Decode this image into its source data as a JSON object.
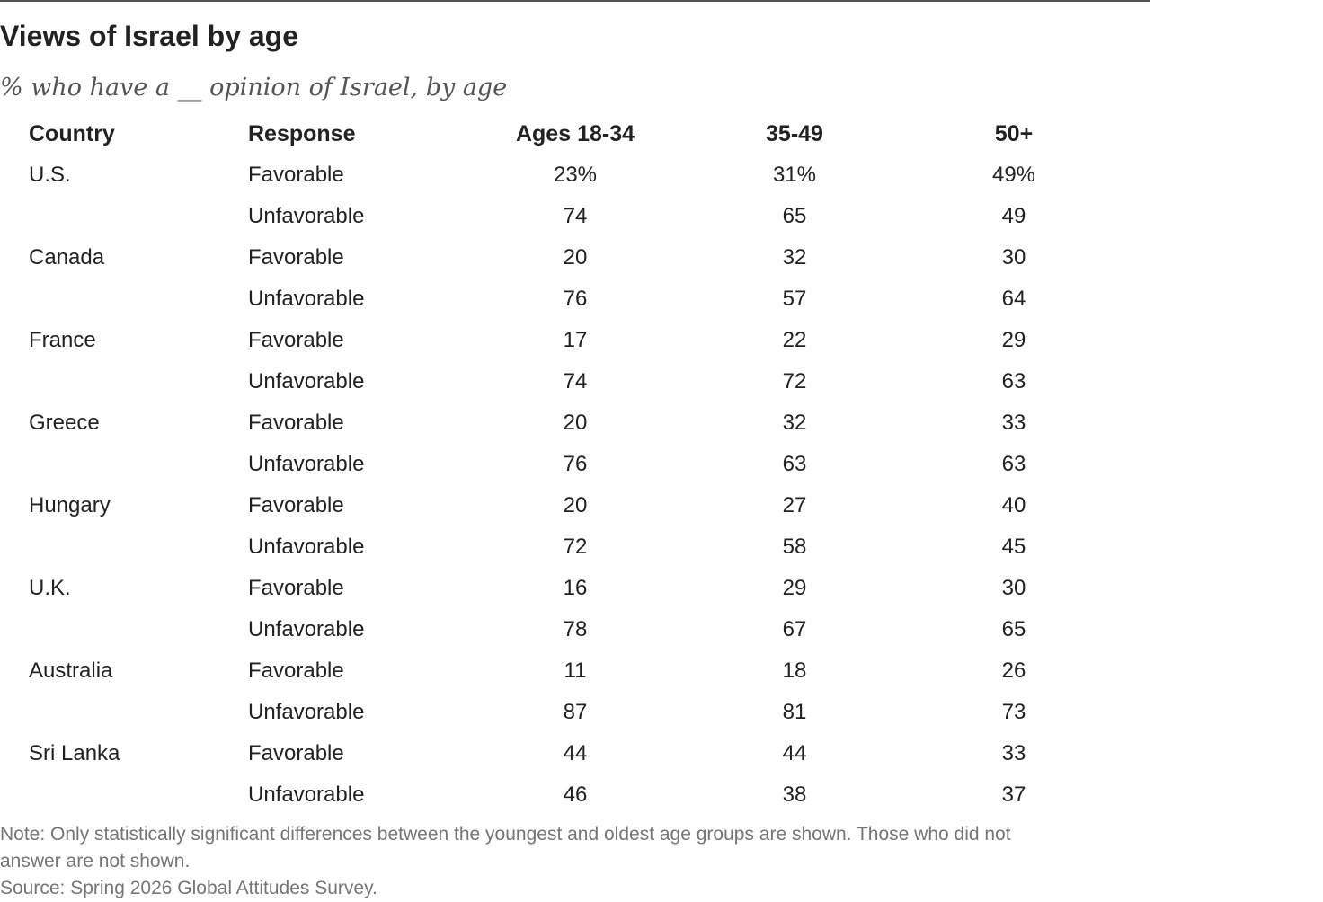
{
  "title": "Views of Israel by age",
  "subtitle": "% who have a __ opinion of Israel, by age",
  "chart_data": {
    "type": "table",
    "columns": [
      "Country",
      "Response",
      "Ages 18-34",
      "35-49",
      "50+"
    ],
    "rows": [
      {
        "country": "U.S.",
        "response": "Favorable",
        "values": [
          "23%",
          "31%",
          "49%"
        ]
      },
      {
        "country": "",
        "response": "Unfavorable",
        "values": [
          "74",
          "65",
          "49"
        ]
      },
      {
        "country": "Canada",
        "response": "Favorable",
        "values": [
          "20",
          "32",
          "30"
        ]
      },
      {
        "country": "",
        "response": "Unfavorable",
        "values": [
          "76",
          "57",
          "64"
        ]
      },
      {
        "country": "France",
        "response": "Favorable",
        "values": [
          "17",
          "22",
          "29"
        ]
      },
      {
        "country": "",
        "response": "Unfavorable",
        "values": [
          "74",
          "72",
          "63"
        ]
      },
      {
        "country": "Greece",
        "response": "Favorable",
        "values": [
          "20",
          "32",
          "33"
        ]
      },
      {
        "country": "",
        "response": "Unfavorable",
        "values": [
          "76",
          "63",
          "63"
        ]
      },
      {
        "country": "Hungary",
        "response": "Favorable",
        "values": [
          "20",
          "27",
          "40"
        ]
      },
      {
        "country": "",
        "response": "Unfavorable",
        "values": [
          "72",
          "58",
          "45"
        ]
      },
      {
        "country": "U.K.",
        "response": "Favorable",
        "values": [
          "16",
          "29",
          "30"
        ]
      },
      {
        "country": "",
        "response": "Unfavorable",
        "values": [
          "78",
          "67",
          "65"
        ]
      },
      {
        "country": "Australia",
        "response": "Favorable",
        "values": [
          "11",
          "18",
          "26"
        ]
      },
      {
        "country": "",
        "response": "Unfavorable",
        "values": [
          "87",
          "81",
          "73"
        ]
      },
      {
        "country": "Sri Lanka",
        "response": "Favorable",
        "values": [
          "44",
          "44",
          "33"
        ]
      },
      {
        "country": "",
        "response": "Unfavorable",
        "values": [
          "46",
          "38",
          "37"
        ]
      }
    ]
  },
  "note_lines": [
    "Note: Only statistically significant differences between the youngest and oldest age groups are shown. Those who did not",
    "answer are not shown.",
    "Source: Spring 2026 Global Attitudes Survey."
  ]
}
